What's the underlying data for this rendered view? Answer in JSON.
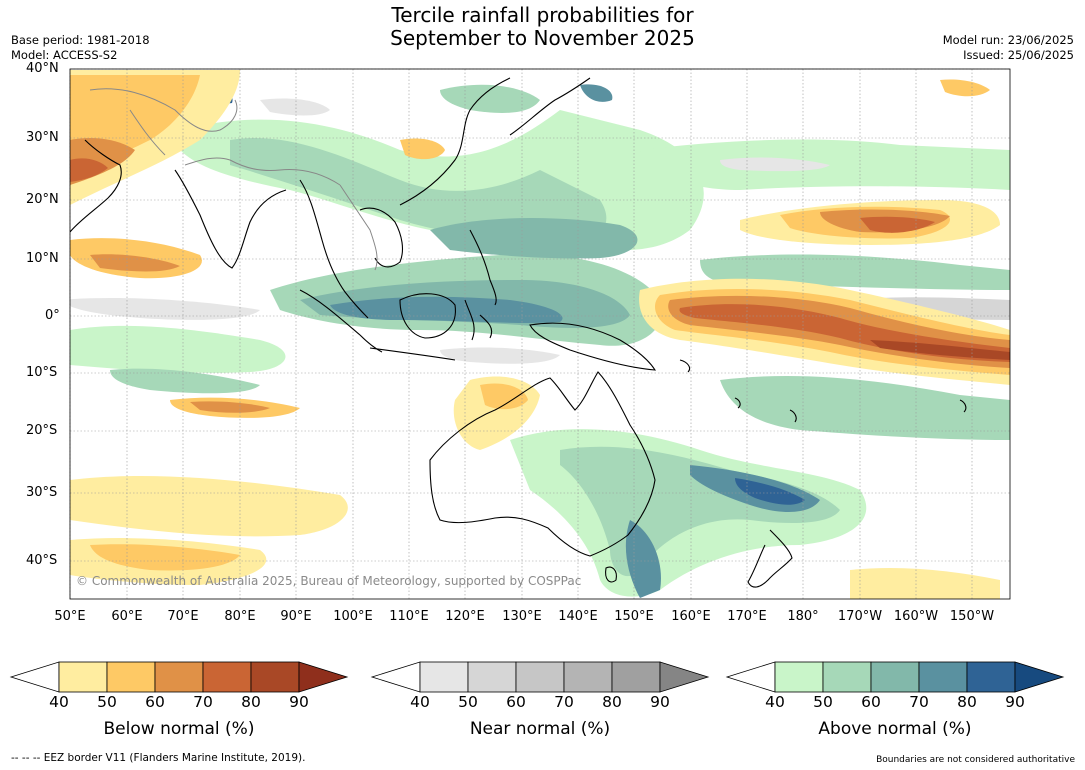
{
  "header": {
    "title_line1": "Tercile rainfall probabilities for",
    "title_line2": "September to November 2025",
    "base_period": "Base period: 1981-2018",
    "model": "Model: ACCESS-S2",
    "model_run": "Model run: 23/06/2025",
    "issued": "Issued: 25/06/2025"
  },
  "map": {
    "latitude_labels": [
      "40°N",
      "30°N",
      "20°N",
      "10°N",
      "0°",
      "10°S",
      "20°S",
      "30°S",
      "40°S"
    ],
    "longitude_labels": [
      "50°E",
      "60°E",
      "70°E",
      "80°E",
      "90°E",
      "100°E",
      "110°E",
      "120°E",
      "130°E",
      "140°E",
      "150°E",
      "160°E",
      "170°E",
      "180°",
      "170°W",
      "160°W",
      "150°W"
    ],
    "copyright": "© Commonwealth of Australia 2025, Bureau of Meteorology, supported by COSPPac",
    "colors": {
      "ocean_land_background": "#ffffff",
      "land_outline": "#000000",
      "border_outline": "#888888"
    }
  },
  "colorbars": [
    {
      "label": "Below normal (%)",
      "ticks": [
        "40",
        "50",
        "60",
        "70",
        "80",
        "90"
      ],
      "colors": [
        "#ffffff",
        "#ffeda0",
        "#fec965",
        "#e09147",
        "#ca6534",
        "#a94826",
        "#8f2f1c"
      ]
    },
    {
      "label": "Near normal (%)",
      "ticks": [
        "40",
        "50",
        "60",
        "70",
        "80",
        "90"
      ],
      "colors": [
        "#ffffff",
        "#e6e6e6",
        "#d6d6d6",
        "#c6c6c6",
        "#b4b4b4",
        "#a0a0a0",
        "#858585"
      ]
    },
    {
      "label": "Above normal (%)",
      "ticks": [
        "40",
        "50",
        "60",
        "70",
        "80",
        "90"
      ],
      "colors": [
        "#ffffff",
        "#c9f5c9",
        "#a6d8b8",
        "#82b8aa",
        "#5a91a0",
        "#2f6395",
        "#174a7f"
      ]
    }
  ],
  "footer": {
    "eez_note": "--  --  -- EEZ border V11 (Flanders Marine Institute, 2019).",
    "disclaimer": "Boundaries are not considered authoritative"
  }
}
